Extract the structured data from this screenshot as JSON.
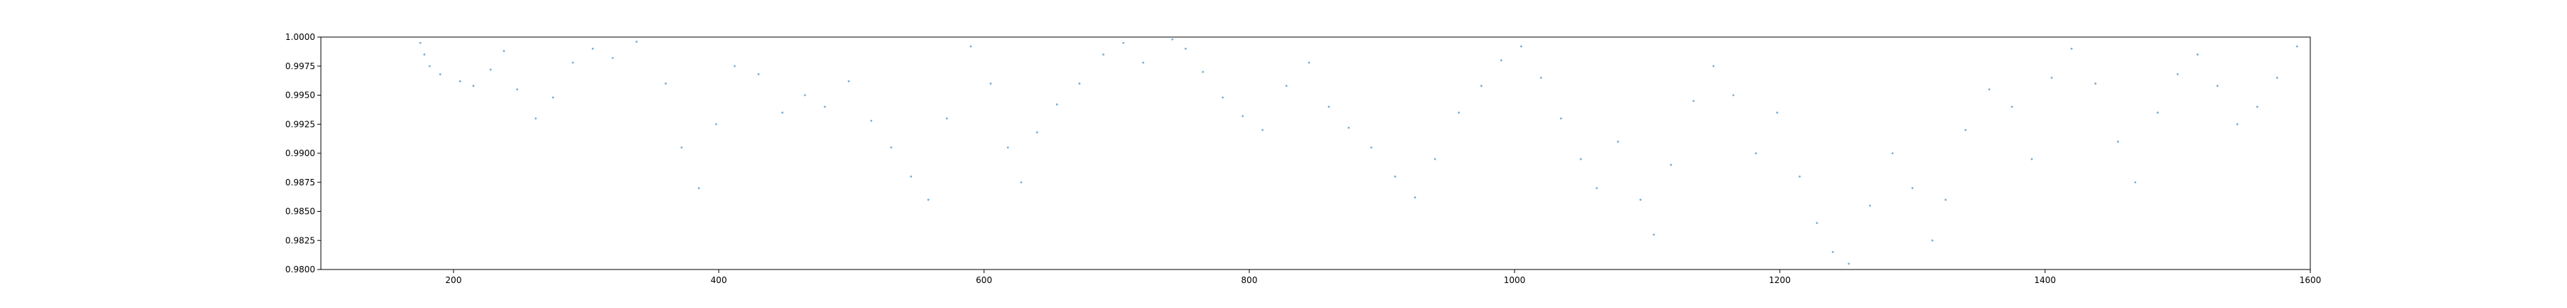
{
  "chart_data": {
    "type": "scatter",
    "title": "",
    "xlabel": "",
    "ylabel": "",
    "xlim": [
      100,
      1600
    ],
    "ylim": [
      0.98,
      1.0
    ],
    "x_ticks": [
      200,
      400,
      600,
      800,
      1000,
      1200,
      1400,
      1600
    ],
    "x_tick_labels": [
      "200",
      "400",
      "600",
      "800",
      "1000",
      "1200",
      "1400",
      "1600"
    ],
    "y_ticks": [
      0.98,
      0.9825,
      0.985,
      0.9875,
      0.99,
      0.9925,
      0.995,
      0.9975,
      1.0
    ],
    "y_tick_labels": [
      "0.9800",
      "0.9825",
      "0.9850",
      "0.9875",
      "0.9900",
      "0.9925",
      "0.9950",
      "0.9975",
      "1.0000"
    ],
    "grid": false,
    "legend": "none",
    "marker_color": "#1f77b4",
    "series": [
      {
        "x": [
          175,
          178,
          182,
          190,
          205,
          215,
          228,
          238,
          248,
          262,
          275,
          290,
          305,
          320,
          338,
          360,
          372,
          385,
          398,
          412,
          430,
          448,
          465,
          480,
          498,
          515,
          530,
          545,
          558,
          572,
          590,
          605,
          618,
          628,
          640,
          655,
          672,
          690,
          705,
          720,
          742,
          752,
          765,
          780,
          795,
          810,
          828,
          845,
          860,
          875,
          892,
          910,
          925,
          940,
          958,
          975,
          990,
          1005,
          1020,
          1035,
          1050,
          1062,
          1078,
          1095,
          1105,
          1118,
          1135,
          1150,
          1165,
          1182,
          1198,
          1215,
          1228,
          1240,
          1252,
          1268,
          1285,
          1300,
          1315,
          1325,
          1340,
          1358,
          1375,
          1390,
          1405,
          1420,
          1438,
          1455,
          1468,
          1485,
          1500,
          1515,
          1530,
          1545,
          1560,
          1575,
          1590
        ],
        "y": [
          0.9995,
          0.9985,
          0.9975,
          0.9968,
          0.9962,
          0.9958,
          0.9972,
          0.9988,
          0.9955,
          0.993,
          0.9948,
          0.9978,
          0.999,
          0.9982,
          0.9996,
          0.996,
          0.9905,
          0.987,
          0.9925,
          0.9975,
          0.9968,
          0.9935,
          0.995,
          0.994,
          0.9962,
          0.9928,
          0.9905,
          0.988,
          0.986,
          0.993,
          0.9992,
          0.996,
          0.9905,
          0.9875,
          0.9918,
          0.9942,
          0.996,
          0.9985,
          0.9995,
          0.9978,
          0.9998,
          0.999,
          0.997,
          0.9948,
          0.9932,
          0.992,
          0.9958,
          0.9978,
          0.994,
          0.9922,
          0.9905,
          0.988,
          0.9862,
          0.9895,
          0.9935,
          0.9958,
          0.998,
          0.9992,
          0.9965,
          0.993,
          0.9895,
          0.987,
          0.991,
          0.986,
          0.983,
          0.989,
          0.9945,
          0.9975,
          0.995,
          0.99,
          0.9935,
          0.988,
          0.984,
          0.9815,
          0.9805,
          0.9855,
          0.99,
          0.987,
          0.9825,
          0.986,
          0.992,
          0.9955,
          0.994,
          0.9895,
          0.9965,
          0.999,
          0.996,
          0.991,
          0.9875,
          0.9935,
          0.9968,
          0.9985,
          0.9958,
          0.9925,
          0.994,
          0.9965,
          0.9992
        ]
      }
    ]
  }
}
